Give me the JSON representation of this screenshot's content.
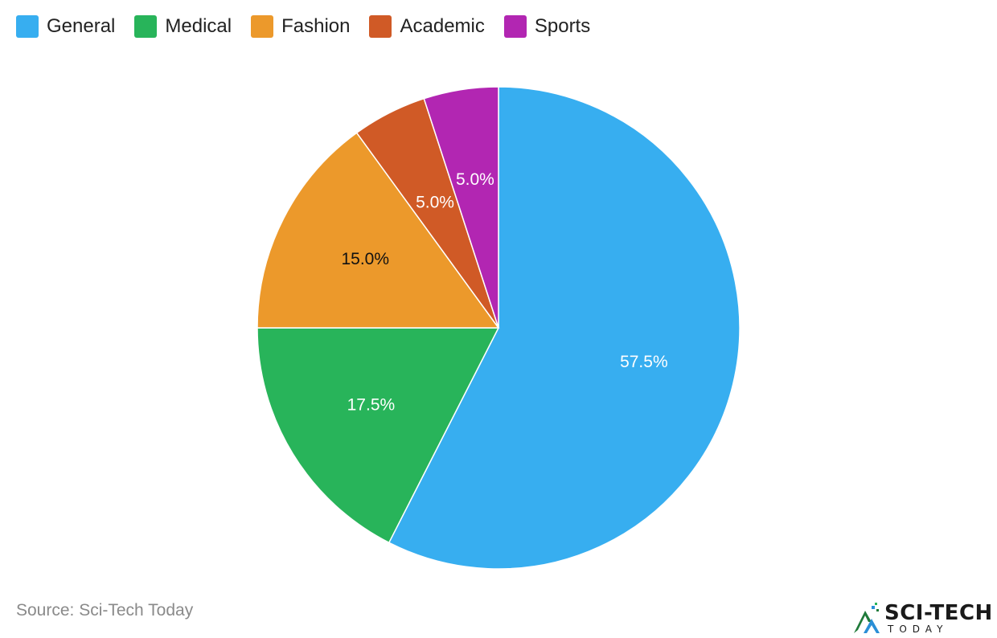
{
  "chart_data": {
    "type": "pie",
    "categories": [
      "General",
      "Medical",
      "Fashion",
      "Academic",
      "Sports"
    ],
    "values": [
      57.5,
      17.5,
      15.0,
      5.0,
      5.0
    ],
    "labels": [
      "57.5%",
      "17.5%",
      "15.0%",
      "5.0%",
      "5.0%"
    ],
    "colors": [
      "#37aef0",
      "#28b45a",
      "#ec992b",
      "#d05a26",
      "#b226b2"
    ],
    "label_colors": [
      "#ffffff",
      "#ffffff",
      "#111111",
      "#ffffff",
      "#ffffff"
    ],
    "legend_position": "top-left"
  },
  "source": "Source: Sci-Tech Today",
  "logo": {
    "main": "SCI-TECH",
    "sub": "TODAY"
  }
}
